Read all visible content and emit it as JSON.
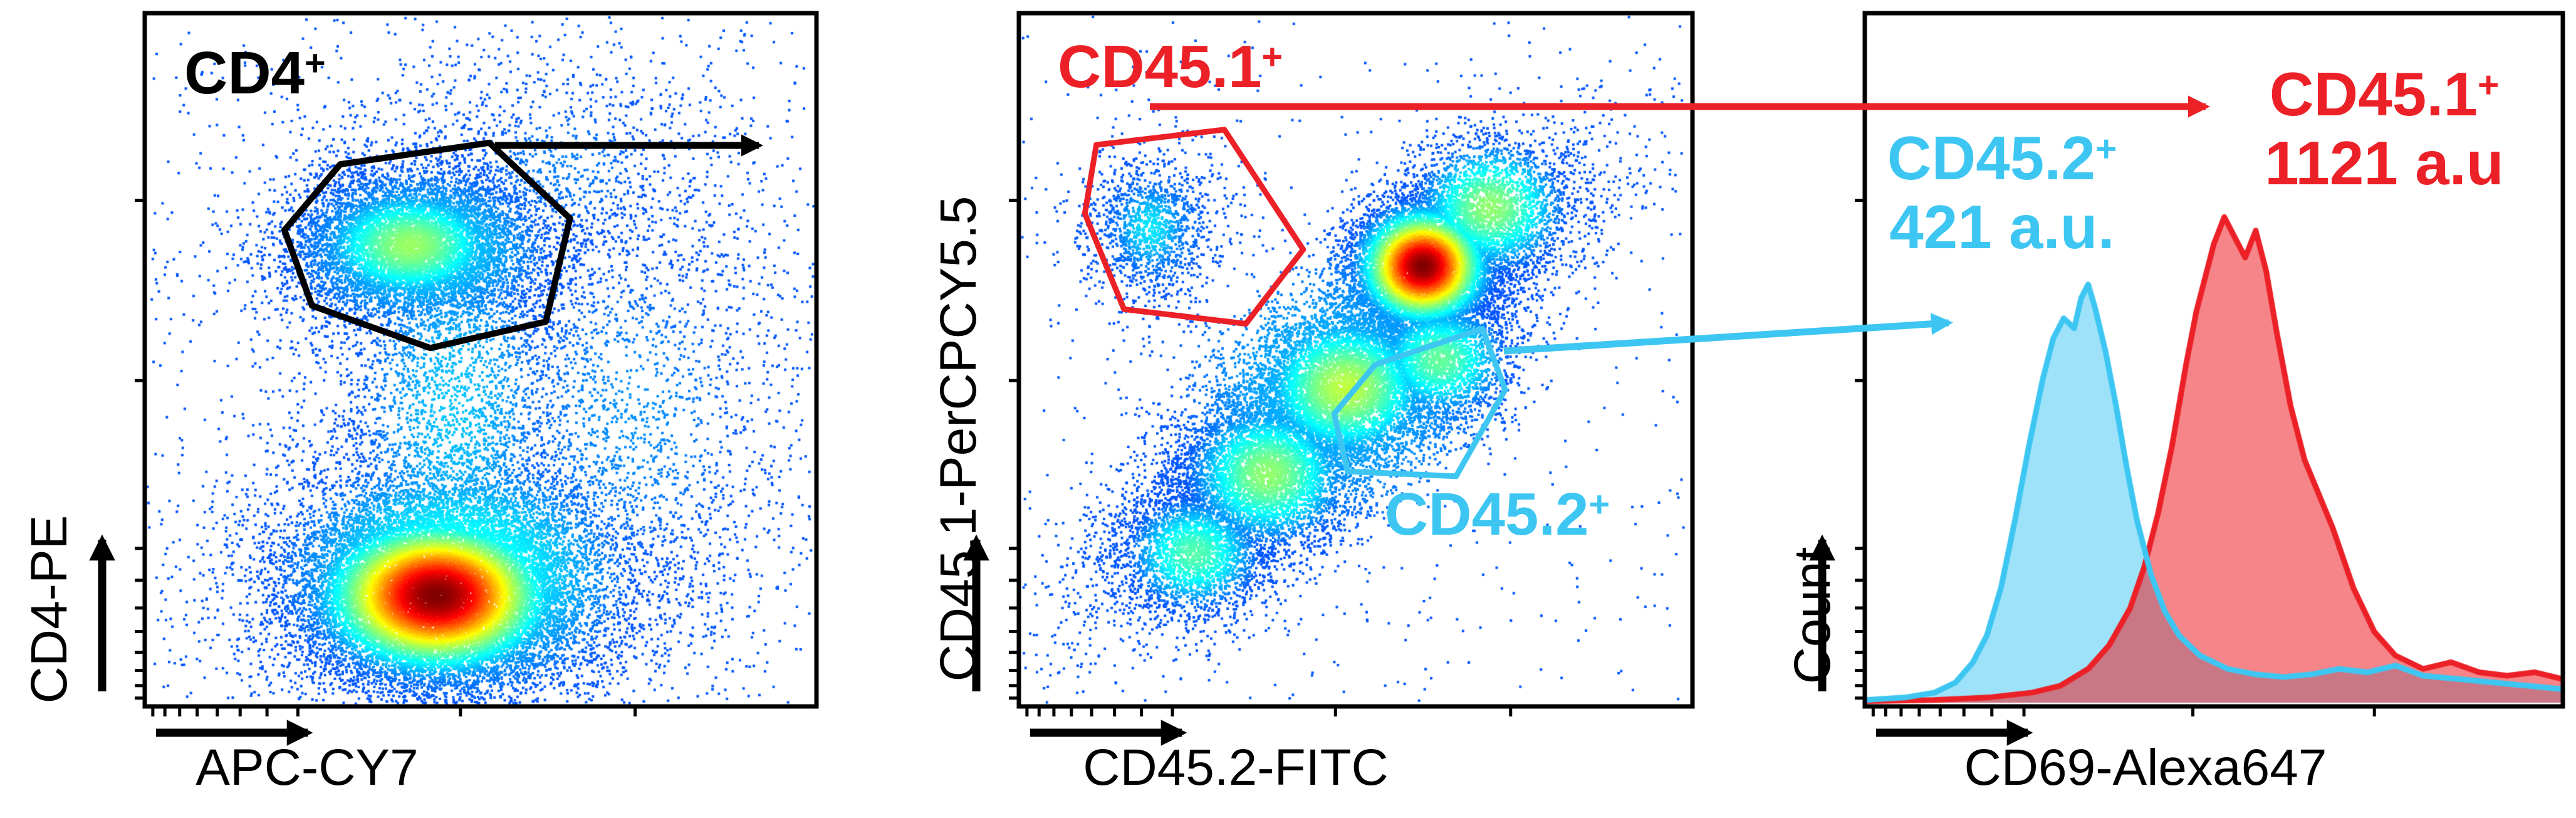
{
  "colors": {
    "red": "#EC2127",
    "cyan": "#3EC6F3",
    "black": "#000000",
    "bg": "#FFFFFF"
  },
  "panels": [
    {
      "title": {
        "base": "CD4",
        "sup": "+"
      },
      "xlabel": "APC-CY7",
      "ylabel": "CD4-PE"
    },
    {
      "xlabel": "CD45.2-FITC",
      "ylabel": "CD45.1-PerCPCY5.5",
      "gate_labels": [
        {
          "base": "CD45.1",
          "sup": "+"
        },
        {
          "base": "CD45.2",
          "sup": "+"
        }
      ]
    },
    {
      "xlabel": "CD69-Alexa647",
      "ylabel": "Count",
      "annotations": [
        {
          "name": "CD45.2",
          "sup": "+",
          "value": "421 a.u."
        },
        {
          "name": "CD45.1",
          "sup": "+",
          "value": "1121 a.u"
        }
      ]
    }
  ],
  "annotations": {
    "arrows": [
      {
        "name": "cd4-gate-arrow",
        "color": "#000000",
        "from": [
          0.1922,
          0.1778
        ],
        "to": [
          0.2946,
          0.1778
        ]
      },
      {
        "name": "cd45-1-gate-arrow",
        "color": "#EC2127",
        "from": [
          0.4464,
          0.1303
        ],
        "to": [
          0.8563,
          0.1303
        ]
      },
      {
        "name": "cd45-2-gate-arrow",
        "color": "#3EC6F3",
        "from": [
          0.5838,
          0.4291
        ],
        "to": [
          0.7565,
          0.3946
        ]
      }
    ]
  },
  "chart_data": [
    {
      "type": "scatter",
      "subtype": "pseudocolor-density-dot-plot",
      "title": "CD4+",
      "xlabel": "APC-CY7",
      "ylabel": "CD4-PE",
      "axis_scale": "biexponential, unlabeled",
      "gate": {
        "label": "CD4+",
        "color": "#000000",
        "polygon_frac": [
          [
            0.291,
            0.782
          ],
          [
            0.513,
            0.813
          ],
          [
            0.633,
            0.704
          ],
          [
            0.597,
            0.555
          ],
          [
            0.425,
            0.517
          ],
          [
            0.249,
            0.578
          ],
          [
            0.208,
            0.687
          ]
        ]
      },
      "populations": [
        {
          "cx": 0.435,
          "cy": 0.16,
          "sx": 0.095,
          "sy": 0.062,
          "n": 15000,
          "level": 1.0
        },
        {
          "cx": 0.46,
          "cy": 0.19,
          "sx": 0.17,
          "sy": 0.115,
          "n": 5000,
          "level": 0.34
        },
        {
          "cx": 0.395,
          "cy": 0.665,
          "sx": 0.082,
          "sy": 0.05,
          "n": 6000,
          "level": 0.46
        },
        {
          "cx": 0.41,
          "cy": 0.66,
          "sx": 0.14,
          "sy": 0.085,
          "n": 1800,
          "level": 0.26
        },
        {
          "cx": 0.46,
          "cy": 0.43,
          "sx": 0.11,
          "sy": 0.2,
          "n": 2600,
          "level": 0.22
        },
        {
          "cx": 0.72,
          "cy": 0.42,
          "sx": 0.16,
          "sy": 0.21,
          "n": 2000,
          "level": 0.16
        },
        {
          "cx": 0.62,
          "cy": 0.78,
          "sx": 0.14,
          "sy": 0.1,
          "n": 800,
          "level": 0.14
        },
        {
          "uniform": true,
          "n": 650,
          "level": 0.12
        }
      ]
    },
    {
      "type": "scatter",
      "subtype": "pseudocolor-density-dot-plot",
      "xlabel": "CD45.2-FITC",
      "ylabel": "CD45.1-PerCPCY5.5",
      "axis_scale": "biexponential, unlabeled",
      "gates": [
        {
          "label": "CD45.1+",
          "color": "#EC2127",
          "polygon_frac": [
            [
              0.115,
              0.81
            ],
            [
              0.305,
              0.832
            ],
            [
              0.422,
              0.659
            ],
            [
              0.337,
              0.552
            ],
            [
              0.156,
              0.573
            ],
            [
              0.098,
              0.711
            ]
          ]
        },
        {
          "label": "CD45.2+",
          "color": "#3EC6F3",
          "polygon_frac": [
            [
              0.529,
              0.493
            ],
            [
              0.688,
              0.545
            ],
            [
              0.722,
              0.457
            ],
            [
              0.649,
              0.332
            ],
            [
              0.488,
              0.339
            ],
            [
              0.468,
              0.422
            ]
          ]
        }
      ],
      "populations": [
        {
          "cx": 0.26,
          "cy": 0.22,
          "sx": 0.06,
          "sy": 0.05,
          "n": 2200,
          "level": 0.38
        },
        {
          "cx": 0.37,
          "cy": 0.335,
          "sx": 0.07,
          "sy": 0.06,
          "n": 3600,
          "level": 0.45
        },
        {
          "cx": 0.485,
          "cy": 0.46,
          "sx": 0.075,
          "sy": 0.062,
          "n": 4600,
          "level": 0.5
        },
        {
          "cx": 0.6,
          "cy": 0.635,
          "sx": 0.052,
          "sy": 0.046,
          "n": 7500,
          "level": 1.0
        },
        {
          "cx": 0.7,
          "cy": 0.72,
          "sx": 0.065,
          "sy": 0.055,
          "n": 2300,
          "level": 0.45
        },
        {
          "cx": 0.47,
          "cy": 0.46,
          "sx": 0.19,
          "sy": 0.165,
          "rho": 0.88,
          "n": 5200,
          "level": 0.22
        },
        {
          "cx": 0.625,
          "cy": 0.5,
          "sx": 0.06,
          "sy": 0.05,
          "n": 2000,
          "level": 0.4
        },
        {
          "cx": 0.195,
          "cy": 0.69,
          "sx": 0.042,
          "sy": 0.048,
          "n": 1000,
          "level": 0.26
        },
        {
          "cx": 0.2,
          "cy": 0.69,
          "sx": 0.08,
          "sy": 0.088,
          "n": 450,
          "level": 0.16
        },
        {
          "uniform": true,
          "n": 450,
          "level": 0.12
        }
      ]
    },
    {
      "type": "histogram",
      "xlabel": "CD69-Alexa647",
      "ylabel": "Count",
      "legend_position": "annotations inside plot, top",
      "series": [
        {
          "name": "CD45.2+",
          "annotation": "421 a.u.",
          "color": "#3EC6F3",
          "fill_opacity": 0.5,
          "x_frac": [
            0,
            0.06,
            0.1,
            0.13,
            0.155,
            0.175,
            0.195,
            0.215,
            0.235,
            0.255,
            0.27,
            0.285,
            0.3,
            0.31,
            0.32,
            0.33,
            0.345,
            0.36,
            0.375,
            0.39,
            0.41,
            0.43,
            0.45,
            0.48,
            0.52,
            0.56,
            0.6,
            0.64,
            0.68,
            0.72,
            0.76,
            0.8,
            0.85,
            0.9,
            0.95,
            1.0
          ],
          "y_frac": [
            0.004,
            0.008,
            0.015,
            0.03,
            0.06,
            0.1,
            0.17,
            0.27,
            0.38,
            0.48,
            0.54,
            0.57,
            0.555,
            0.6,
            0.62,
            0.585,
            0.52,
            0.44,
            0.35,
            0.27,
            0.19,
            0.135,
            0.1,
            0.07,
            0.05,
            0.042,
            0.038,
            0.042,
            0.05,
            0.045,
            0.055,
            0.04,
            0.035,
            0.03,
            0.025,
            0.02
          ]
        },
        {
          "name": "CD45.1+",
          "annotation": "1121 a.u",
          "color": "#EC2127",
          "fill_opacity": 0.55,
          "x_frac": [
            0,
            0.1,
            0.18,
            0.24,
            0.28,
            0.32,
            0.35,
            0.38,
            0.4,
            0.42,
            0.44,
            0.46,
            0.475,
            0.49,
            0.5,
            0.515,
            0.53,
            0.545,
            0.56,
            0.575,
            0.59,
            0.61,
            0.63,
            0.65,
            0.67,
            0.7,
            0.73,
            0.76,
            0.8,
            0.84,
            0.88,
            0.92,
            0.96,
            1.0
          ],
          "y_frac": [
            0.002,
            0.004,
            0.008,
            0.015,
            0.025,
            0.05,
            0.085,
            0.14,
            0.2,
            0.28,
            0.38,
            0.5,
            0.58,
            0.64,
            0.68,
            0.72,
            0.69,
            0.66,
            0.7,
            0.64,
            0.55,
            0.44,
            0.36,
            0.31,
            0.26,
            0.17,
            0.105,
            0.07,
            0.05,
            0.06,
            0.045,
            0.04,
            0.045,
            0.035
          ]
        }
      ]
    }
  ]
}
